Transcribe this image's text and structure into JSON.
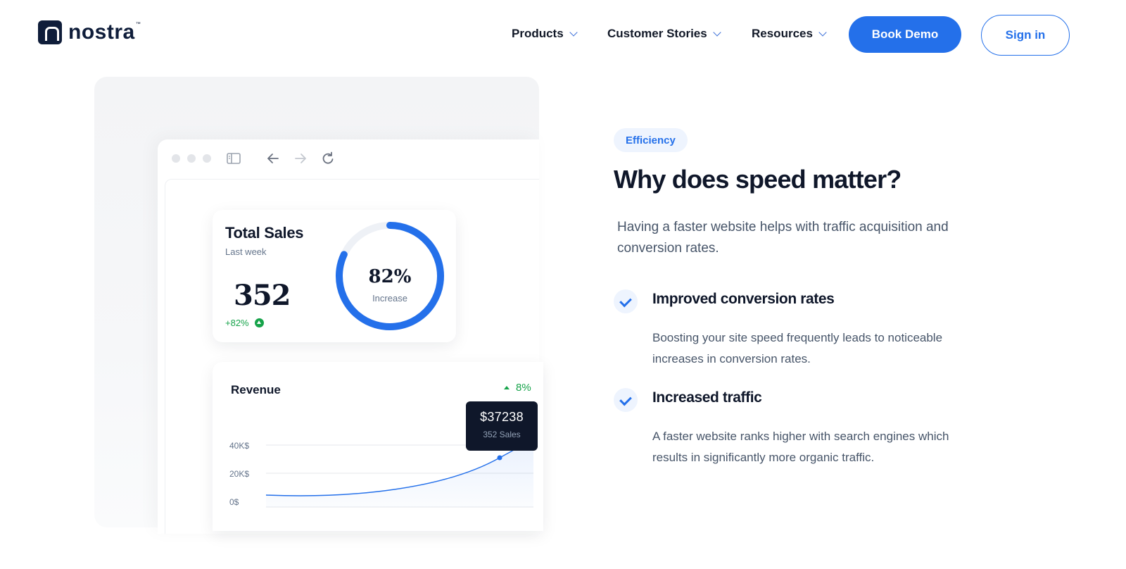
{
  "header": {
    "logo_text": "nostra",
    "logo_tm": "™",
    "nav": [
      {
        "label": "Products"
      },
      {
        "label": "Customer Stories"
      },
      {
        "label": "Resources"
      }
    ],
    "book_demo_label": "Book Demo",
    "sign_in_label": "Sign in"
  },
  "dashboard": {
    "total_sales": {
      "title": "Total Sales",
      "subtitle": "Last week",
      "value": "352",
      "delta": "+82%",
      "donut_value": "82%",
      "donut_label": "Increase",
      "donut_fraction": 0.82
    },
    "revenue": {
      "title": "Revenue",
      "trend": "8%",
      "tooltip_value": "$37238",
      "tooltip_sub": "352 Sales",
      "y_ticks": [
        "40K$",
        "20K$",
        "0$"
      ]
    }
  },
  "content": {
    "badge": "Efficiency",
    "heading": "Why does speed matter?",
    "intro": "Having a faster website helps with traffic acquisition and conversion rates.",
    "features": [
      {
        "title": "Improved conversion rates",
        "body": "Boosting your site speed frequently leads to noticeable increases in conversion rates."
      },
      {
        "title": "Increased traffic",
        "body": "A faster website ranks higher with search engines which results in significantly more organic traffic."
      }
    ]
  },
  "colors": {
    "accent": "#2470ea",
    "positive": "#16a34a",
    "dark": "#0f172a"
  }
}
